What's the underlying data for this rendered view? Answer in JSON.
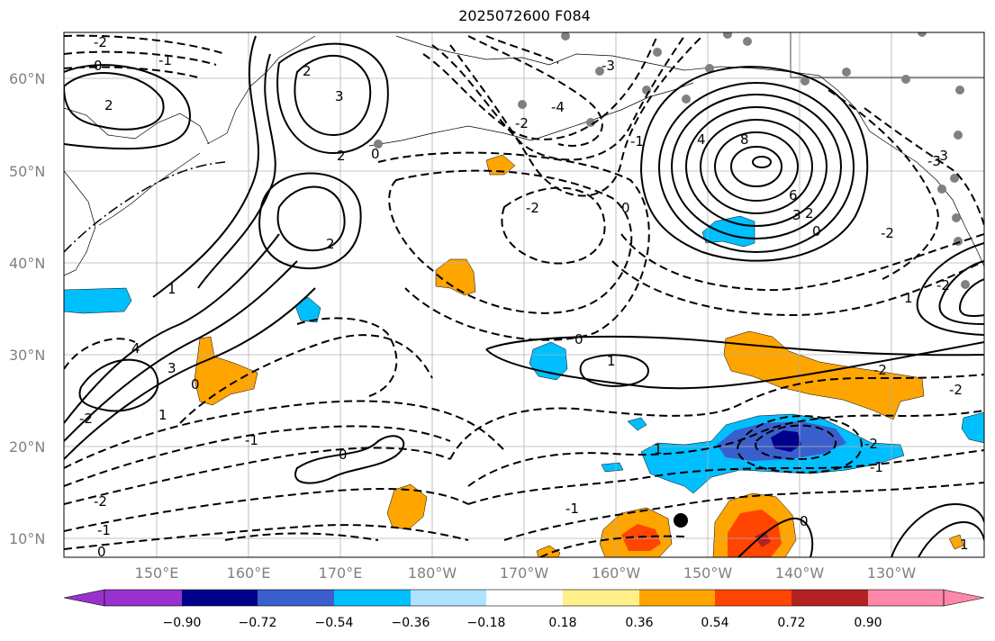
{
  "title": "2025072600 F084",
  "lat_labels": [
    "60°N",
    "50°N",
    "40°N",
    "30°N",
    "20°N",
    "10°N"
  ],
  "lon_labels": [
    "150°E",
    "160°E",
    "170°E",
    "180°W",
    "170°W",
    "160°W",
    "150°W",
    "140°W",
    "130°W"
  ],
  "colorbar": {
    "ticks": [
      "−0.90",
      "−0.72",
      "−0.54",
      "−0.36",
      "−0.18",
      "0.18",
      "0.36",
      "0.54",
      "0.72",
      "0.90"
    ],
    "colors": [
      "#9932cc",
      "#00008b",
      "#3a5fcd",
      "#00bfff",
      "#b0e2ff",
      "#ffffff",
      "#fff08a",
      "#ffa500",
      "#ff4500",
      "#b22222",
      "#ff88aa"
    ]
  },
  "contour_labels": {
    "m2a": "-2",
    "m1a": "-1",
    "m0a": "0",
    "p2a": "2",
    "p3a": "3",
    "p2b": "2",
    "p2c": "2",
    "m1b": "0",
    "m4a": "-4",
    "m3a": "-3",
    "m2b": "-2",
    "m1c": "-1",
    "p8": "8",
    "p6": "6",
    "p4": "4",
    "p3b": "3",
    "p2d": "2",
    "m0b": "0",
    "m2c": "-2",
    "m3b": "-3",
    "p0a": "0",
    "p1a": "1",
    "p2e": "2",
    "p4b": "4",
    "p3c": "3",
    "p1b": "1",
    "p2f": "-2",
    "p0b": "0",
    "m1d": "-1",
    "p1c": "1",
    "p0c": "0",
    "m2d": "-2",
    "m2e": "-2",
    "m1e": "-1",
    "p0d": "0",
    "m2f": "-2",
    "m1f": "-1",
    "m0c": "0",
    "m1g": "-1",
    "p0e": "0",
    "p1d": "1",
    "m2g": "-2",
    "p1e": "1",
    "m3c": "-3",
    "m2h": "-2",
    "m2i": "-2",
    "p1f": "1"
  }
}
